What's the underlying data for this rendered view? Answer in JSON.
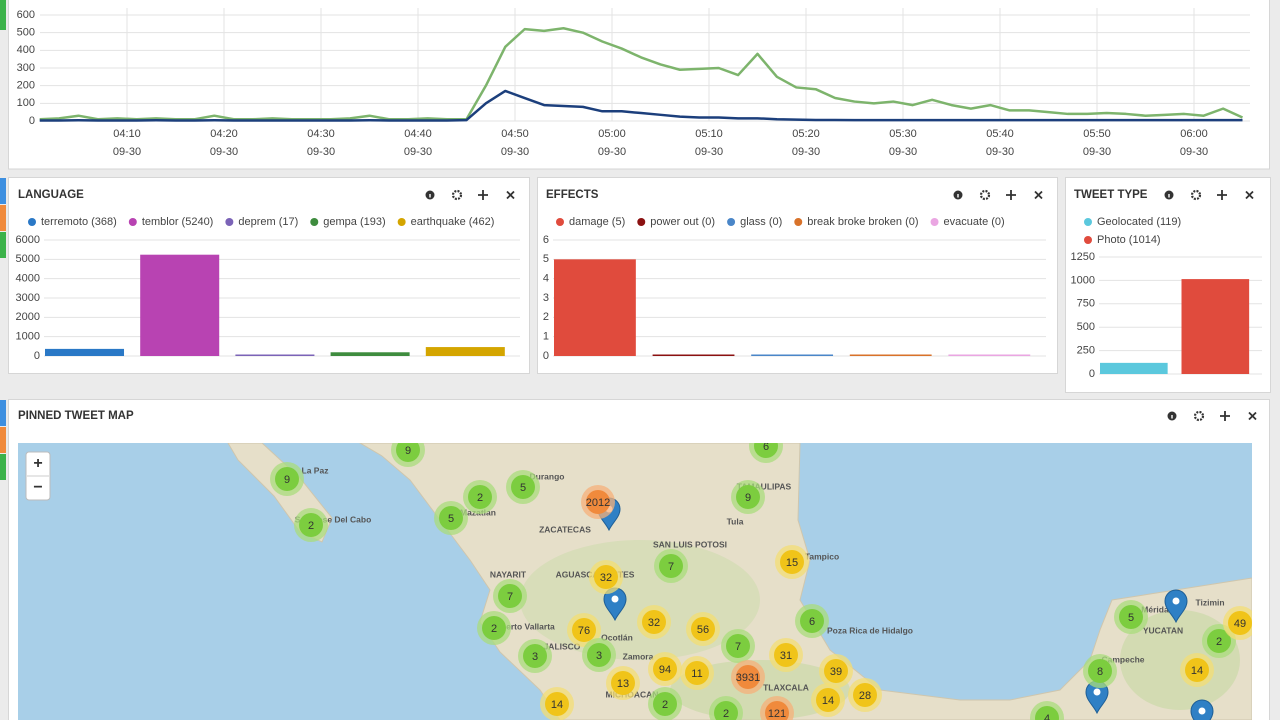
{
  "timeline": {
    "type": "line",
    "x": [
      "04:01",
      "04:03",
      "04:05",
      "04:07",
      "04:09",
      "04:11",
      "04:13",
      "04:15",
      "04:17",
      "04:19",
      "04:21",
      "04:23",
      "04:25",
      "04:27",
      "04:29",
      "04:31",
      "04:33",
      "04:35",
      "04:37",
      "04:39",
      "04:41",
      "04:43",
      "04:45",
      "04:47",
      "04:49",
      "04:51",
      "04:53",
      "04:55",
      "04:57",
      "04:59",
      "05:01",
      "05:03",
      "05:05",
      "05:07",
      "05:09",
      "05:11",
      "05:13",
      "05:15",
      "05:17",
      "05:19",
      "05:21",
      "05:23",
      "05:25",
      "05:27",
      "05:29",
      "05:31",
      "05:33",
      "05:35",
      "05:37",
      "05:39",
      "05:41",
      "05:43",
      "05:45",
      "05:47",
      "05:49",
      "05:51",
      "05:53",
      "05:55",
      "05:57",
      "05:59",
      "06:01",
      "06:03",
      "06:05"
    ],
    "series": [
      {
        "color": "#7db46c",
        "values": [
          10,
          15,
          30,
          10,
          15,
          10,
          15,
          10,
          10,
          30,
          10,
          10,
          15,
          10,
          10,
          10,
          15,
          30,
          10,
          10,
          15,
          10,
          10,
          200,
          420,
          520,
          510,
          525,
          500,
          450,
          410,
          360,
          320,
          290,
          295,
          300,
          260,
          380,
          250,
          190,
          180,
          130,
          110,
          100,
          110,
          90,
          120,
          90,
          70,
          90,
          60,
          60,
          50,
          40,
          40,
          45,
          40,
          30,
          35,
          40,
          30,
          70,
          20
        ]
      },
      {
        "color": "#1c3f7c",
        "values": [
          3,
          3,
          4,
          3,
          3,
          3,
          4,
          3,
          3,
          4,
          3,
          3,
          3,
          3,
          3,
          3,
          3,
          4,
          3,
          3,
          3,
          3,
          5,
          100,
          170,
          130,
          90,
          85,
          80,
          55,
          55,
          45,
          35,
          25,
          20,
          20,
          15,
          15,
          10,
          8,
          6,
          6,
          5,
          5,
          5,
          5,
          5,
          5,
          5,
          5,
          5,
          5,
          5,
          5,
          5,
          5,
          5,
          5,
          5,
          5,
          5,
          5,
          5
        ]
      }
    ],
    "ylim": [
      0,
      600
    ],
    "yticks": [
      0,
      100,
      200,
      300,
      400,
      500,
      600
    ],
    "xticks": [
      "04:10",
      "04:20",
      "04:30",
      "04:40",
      "04:50",
      "05:00",
      "05:10",
      "05:20",
      "05:30",
      "05:40",
      "05:50",
      "06:00"
    ],
    "xtick_dates": [
      "09-30",
      "09-30",
      "09-30",
      "09-30",
      "09-30",
      "09-30",
      "09-30",
      "09-30",
      "09-30",
      "09-30",
      "09-30",
      "09-30"
    ]
  },
  "language": {
    "type": "bar",
    "title": "LANGUAGE",
    "legend": [
      "terremoto (368)",
      "temblor (5240)",
      "deprem (17)",
      "gempa (193)",
      "earthquake (462)"
    ],
    "values": [
      368,
      5240,
      17,
      193,
      462
    ],
    "colors": [
      "#2a78c6",
      "#b843b2",
      "#7b63b7",
      "#3e8c3e",
      "#d4a500"
    ],
    "ylim": [
      0,
      6000
    ],
    "yticks": [
      0,
      1000,
      2000,
      3000,
      4000,
      5000,
      6000
    ]
  },
  "effects": {
    "type": "bar",
    "title": "EFFECTS",
    "legend": [
      "damage (5)",
      "power out (0)",
      "glass (0)",
      "break broke broken (0)",
      "evacuate (0)"
    ],
    "values": [
      5,
      0,
      0,
      0,
      0
    ],
    "colors": [
      "#e04b3d",
      "#8b1111",
      "#4a86c8",
      "#d8722a",
      "#eaa6e2"
    ],
    "ylim": [
      0,
      6
    ],
    "yticks": [
      0,
      1,
      2,
      3,
      4,
      5,
      6
    ]
  },
  "tweet_type": {
    "type": "bar",
    "title": "TWEET TYPE",
    "legend": [
      "Geolocated (119)",
      "Photo (1014)"
    ],
    "values": [
      119,
      1014
    ],
    "colors": [
      "#5bc8dd",
      "#e04b3d"
    ],
    "ylim": [
      0,
      1250
    ],
    "yticks": [
      0,
      250,
      500,
      750,
      1000,
      1250
    ]
  },
  "map": {
    "title": "PINNED TWEET MAP",
    "zoom": [
      "+",
      "−"
    ],
    "places": [
      "La Paz",
      "San Jose Del Cabo",
      "Durango",
      "Mazatlan",
      "ZACATECAS",
      "SAN LUIS POTOSI",
      "Tula",
      "TAMAULIPAS",
      "Tampico",
      "NAYARIT",
      "AGUASCALIENTES",
      "Puerto Vallarta",
      "JALISCO",
      "Ocotlán",
      "Zamora",
      "Poza Rica de Hidalgo",
      "MICHOACAN",
      "TLAXCALA",
      "Campeche",
      "YUCATAN",
      "Mérida",
      "Tizimin"
    ],
    "clusters": [
      9,
      9,
      2,
      2,
      5,
      5,
      2012,
      9,
      7,
      15,
      32,
      7,
      2,
      76,
      32,
      56,
      6,
      3,
      3,
      7,
      31,
      94,
      11,
      3931,
      39,
      13,
      28,
      14,
      14,
      2,
      121,
      2,
      5,
      2,
      49,
      8,
      14,
      4,
      6
    ]
  }
}
